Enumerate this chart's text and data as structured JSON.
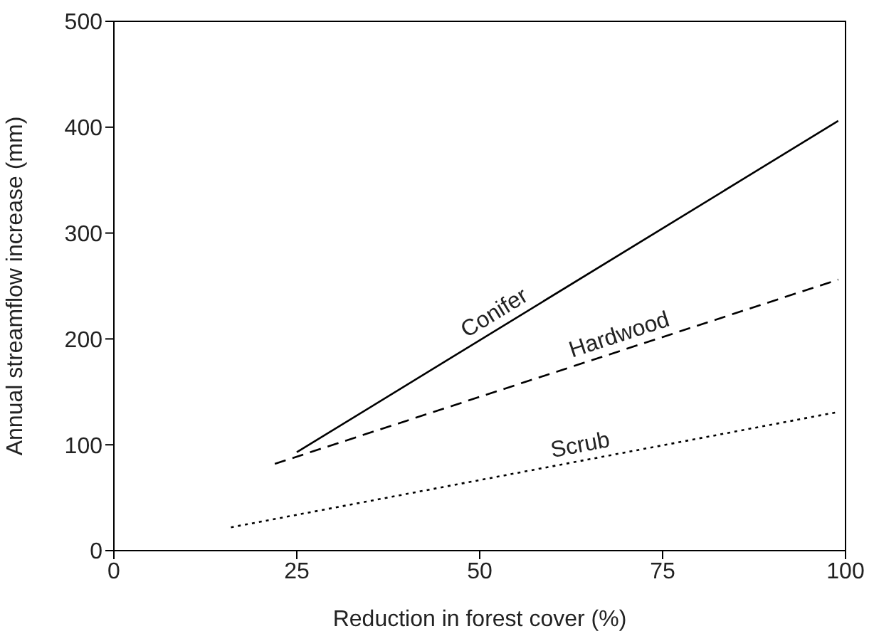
{
  "chart_data": {
    "type": "line",
    "xlabel": "Reduction in forest cover (%)",
    "ylabel": "Annual streamflow increase (mm)",
    "xlim": [
      0,
      100
    ],
    "xticks": [
      0,
      25,
      50,
      75,
      100
    ],
    "ylim": [
      0,
      500
    ],
    "yticks": [
      0,
      100,
      200,
      300,
      400,
      500
    ],
    "marker": "none",
    "series": [
      {
        "name": "Conifer",
        "color": "#000000",
        "line_style": "solid",
        "x": [
          25,
          99
        ],
        "values": [
          93,
          406
        ]
      },
      {
        "name": "Hardwood",
        "color": "#000000",
        "line_style": "dashed",
        "x": [
          22,
          99
        ],
        "values": [
          82,
          256
        ]
      },
      {
        "name": "Scrub",
        "color": "#000000",
        "line_style": "dotted",
        "x": [
          16,
          99
        ],
        "values": [
          22,
          131
        ]
      }
    ]
  }
}
